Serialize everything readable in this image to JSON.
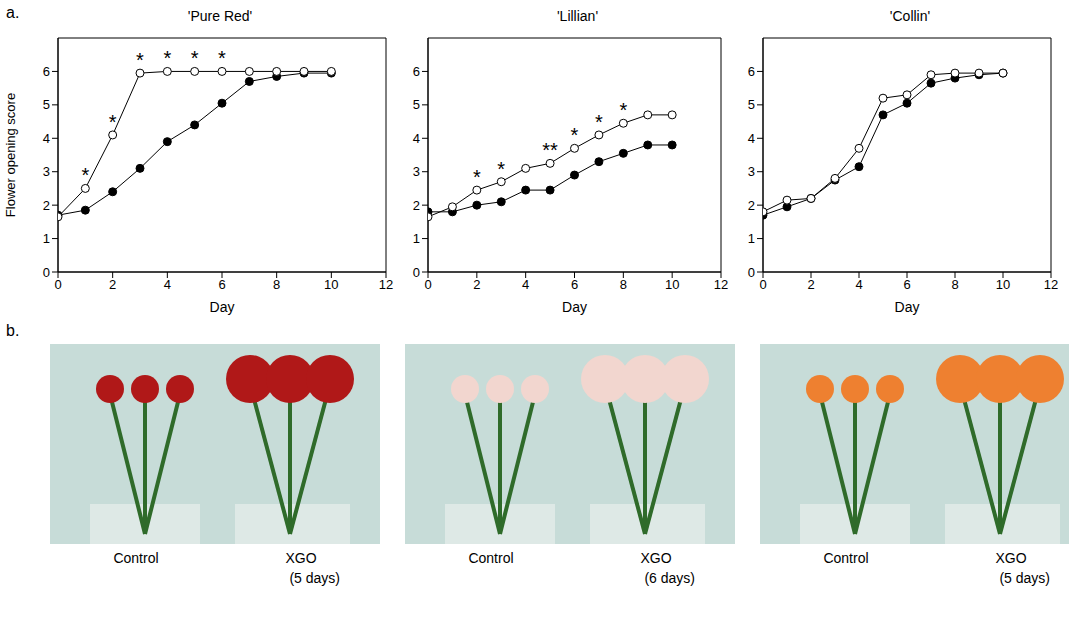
{
  "panel_labels": [
    "a.",
    "b."
  ],
  "chart_data": [
    {
      "type": "line",
      "title": "'Pure Red'",
      "xlabel": "Day",
      "ylabel": "Flower opening score",
      "x": [
        0,
        1,
        2,
        3,
        4,
        5,
        6,
        7,
        8,
        9,
        10
      ],
      "series": [
        {
          "color": "#000000",
          "marker": "circle_open",
          "values": [
            1.65,
            2.5,
            4.1,
            5.95,
            6,
            6,
            6,
            6,
            6,
            6,
            6
          ]
        },
        {
          "color": "#000000",
          "marker": "circle_filled",
          "values": [
            1.7,
            1.85,
            2.4,
            3.1,
            3.9,
            4.4,
            5.05,
            5.7,
            5.85,
            5.95,
            5.95
          ]
        }
      ],
      "xlim": [
        0,
        12
      ],
      "xticks": [
        0,
        2,
        4,
        6,
        8,
        10,
        12
      ],
      "ylim": [
        0,
        7
      ],
      "yticks": [
        0,
        1,
        2,
        3,
        4,
        5,
        6
      ],
      "annotations": [
        {
          "series": 0,
          "x": 1,
          "text": "*"
        },
        {
          "series": 0,
          "x": 2,
          "text": "*"
        },
        {
          "series": 0,
          "x": 3,
          "text": "*"
        },
        {
          "series": 0,
          "x": 4,
          "text": "*"
        },
        {
          "series": 0,
          "x": 5,
          "text": "*"
        },
        {
          "series": 0,
          "x": 6,
          "text": "*"
        }
      ]
    },
    {
      "type": "line",
      "title": "'Lillian'",
      "xlabel": "Day",
      "x": [
        0,
        1,
        2,
        3,
        4,
        5,
        6,
        7,
        8,
        9,
        10
      ],
      "series": [
        {
          "color": "#000000",
          "marker": "circle_open",
          "values": [
            1.65,
            1.95,
            2.45,
            2.7,
            3.1,
            3.25,
            3.7,
            4.1,
            4.45,
            4.7,
            4.7
          ]
        },
        {
          "color": "#000000",
          "marker": "circle_filled",
          "values": [
            1.8,
            1.8,
            2.0,
            2.1,
            2.45,
            2.45,
            2.9,
            3.3,
            3.55,
            3.8,
            3.8
          ]
        }
      ],
      "xlim": [
        0,
        12
      ],
      "xticks": [
        0,
        2,
        4,
        6,
        8,
        10,
        12
      ],
      "ylim": [
        0,
        7
      ],
      "yticks": [
        0,
        1,
        2,
        3,
        4,
        5,
        6
      ],
      "annotations": [
        {
          "series": 0,
          "x": 2,
          "text": "*"
        },
        {
          "series": 0,
          "x": 3,
          "text": "*"
        },
        {
          "series": 0,
          "x": 5,
          "text": "**"
        },
        {
          "series": 0,
          "x": 6,
          "text": "*"
        },
        {
          "series": 0,
          "x": 7,
          "text": "*"
        },
        {
          "series": 0,
          "x": 8,
          "text": "*"
        }
      ]
    },
    {
      "type": "line",
      "title": "'Collin'",
      "xlabel": "Day",
      "x": [
        0,
        1,
        2,
        3,
        4,
        5,
        6,
        7,
        8,
        9,
        10
      ],
      "series": [
        {
          "color": "#000000",
          "marker": "circle_open",
          "values": [
            1.8,
            2.15,
            2.2,
            2.8,
            3.7,
            5.2,
            5.3,
            5.9,
            5.95,
            5.95,
            5.95
          ]
        },
        {
          "color": "#000000",
          "marker": "circle_filled",
          "values": [
            1.7,
            1.95,
            2.2,
            2.75,
            3.15,
            4.7,
            5.05,
            5.65,
            5.8,
            5.9,
            5.95
          ]
        }
      ],
      "xlim": [
        0,
        12
      ],
      "xticks": [
        0,
        2,
        4,
        6,
        8,
        10,
        12
      ],
      "ylim": [
        0,
        7
      ],
      "yticks": [
        0,
        1,
        2,
        3,
        4,
        5,
        6
      ],
      "annotations": []
    }
  ],
  "photos": [
    {
      "captions": [
        "Control",
        "XGO"
      ],
      "note": "(5 days)"
    },
    {
      "captions": [
        "Control",
        "XGO"
      ],
      "note": "(6 days)"
    },
    {
      "captions": [
        "Control",
        "XGO"
      ],
      "note": "(5 days)"
    }
  ]
}
